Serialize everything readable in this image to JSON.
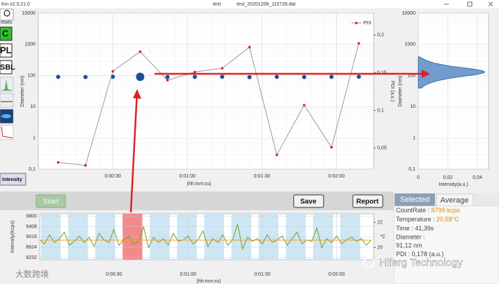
{
  "window": {
    "app": "Kin v2.3.21.0",
    "name": "test",
    "file": "test_20201208_110728.dat"
  },
  "sidebar": {
    "buttons": [
      "etails",
      "C",
      "PL",
      "SBL"
    ],
    "mode": "Intensity"
  },
  "main_chart": {
    "type": "scatter",
    "x_label": "(hh:mm:ss)",
    "y_label": "Diameter (nm)",
    "y2_label": "PDI (a.u.)",
    "x": [
      8,
      19,
      30,
      41,
      52,
      63,
      74,
      85,
      96,
      107,
      118,
      129
    ],
    "series": [
      {
        "values": [
          91,
          90,
          92,
          91.12,
          90,
          91,
          92,
          89,
          91,
          90,
          91,
          92
        ],
        "color": "#1f4e9a"
      },
      {
        "name": "PDI",
        "axis": "y2",
        "values": [
          0.031,
          0.027,
          0.152,
          0.178,
          0.14,
          0.151,
          0.156,
          0.184,
          0.041,
          0.107,
          0.051,
          0.189
        ],
        "color": "#e02020",
        "line_color": "#999999"
      }
    ],
    "selected": 3,
    "xlim": [
      0,
      135
    ],
    "xticks": [
      {
        "value": 30,
        "label": "0:00:30"
      },
      {
        "value": 60,
        "label": "0:01:00"
      },
      {
        "value": 90,
        "label": "0:01:30"
      },
      {
        "value": 120,
        "label": "0:02:00"
      }
    ],
    "ylim": [
      0.1,
      10000
    ],
    "log_y": true,
    "yticks": [
      {
        "value": 0.1,
        "label": "0,1"
      },
      1,
      10,
      100,
      1000,
      10000
    ],
    "y2lim": [
      0.022,
      0.229
    ],
    "y2ticks": [
      {
        "value": 0.05,
        "label": "0,05"
      },
      {
        "value": 0.1,
        "label": "0,1"
      },
      {
        "value": 0.15,
        "label": "0,15"
      },
      {
        "value": 0.2,
        "label": "0,2"
      }
    ],
    "grid": true,
    "legend": "top-right"
  },
  "distribution": {
    "type": "area",
    "x_label": "Intensity(a.u.)",
    "y_label": "Diameter (nm)",
    "diameters": [
      40,
      50,
      60,
      70,
      80,
      90,
      100,
      110,
      120,
      130,
      140,
      160,
      180,
      200,
      250,
      300,
      350,
      400
    ],
    "values": [
      0.002,
      0.005,
      0.009,
      0.014,
      0.02,
      0.027,
      0.034,
      0.04,
      0.044,
      0.045,
      0.044,
      0.038,
      0.03,
      0.022,
      0.011,
      0.006,
      0.003,
      0.001
    ],
    "color": "#5b8bc5",
    "xlim": [
      0,
      0.0475
    ],
    "xticks": [
      0,
      {
        "value": 0.02,
        "label": "0,02"
      },
      {
        "value": 0.04,
        "label": "0,04"
      }
    ],
    "ylim": [
      0.1,
      10000
    ],
    "log_y": true,
    "yticks": [
      {
        "value": 0.1,
        "label": "0,1"
      },
      1,
      10,
      100,
      1000,
      10000
    ],
    "grid": true
  },
  "controls": {
    "start": "Start",
    "save": "Save",
    "report": "Report"
  },
  "trace": {
    "type": "line",
    "x_label": "(hh:mm:ss)",
    "y_label": "Intensity(Kcps)",
    "y2_label": "°C",
    "x": [
      0,
      2,
      4,
      6,
      8,
      10,
      12,
      14,
      16,
      18,
      20,
      22,
      24,
      26,
      28,
      30,
      32,
      34,
      36,
      38,
      40,
      42,
      44,
      46,
      48,
      50,
      52,
      54,
      56,
      58,
      60,
      62,
      64,
      66,
      68,
      70,
      72,
      74,
      76,
      78,
      80,
      82,
      84,
      86,
      88,
      90,
      92,
      94,
      96,
      98,
      100,
      102,
      104,
      106,
      108,
      110,
      112,
      114,
      116,
      118,
      120,
      122,
      124,
      126,
      128,
      130,
      132,
      134
    ],
    "intensity": {
      "color": "#6aa321",
      "values": [
        8900,
        8750,
        9100,
        8800,
        8950,
        9200,
        8700,
        8850,
        9050,
        8800,
        9000,
        8650,
        9150,
        8900,
        8800,
        9300,
        8700,
        8900,
        9050,
        8750,
        8850,
        9400,
        8600,
        9000,
        8800,
        8950,
        8700,
        9150,
        8850,
        8900,
        9050,
        8750,
        8900,
        9250,
        8650,
        8950,
        8800,
        9100,
        8700,
        8900,
        9500,
        8550,
        9000,
        8850,
        8950,
        8750,
        9100,
        8800,
        8900,
        9050,
        8700,
        8950,
        9200,
        8750,
        8900,
        8850,
        9350,
        8600,
        8950,
        8800,
        9050,
        8750,
        8900,
        9000,
        8850,
        8950,
        8700,
        8900
      ]
    },
    "temperature": {
      "axis": "y2",
      "color": "#f0a030",
      "x": [
        0,
        134
      ],
      "values": [
        20.58,
        20.58
      ]
    },
    "xlim": [
      0,
      135
    ],
    "xticks": [
      {
        "value": 30,
        "label": "0:00:30"
      },
      {
        "value": 60,
        "label": "0:01:00"
      },
      {
        "value": 90,
        "label": "0:01:30"
      },
      {
        "value": 120,
        "label": "0:02:00"
      }
    ],
    "ylim": [
      8150,
      9900
    ],
    "yticks": [
      8232,
      8624,
      9016,
      9408,
      9800
    ],
    "y2lim": [
      19.03,
      22.69
    ],
    "y2ticks": [
      20,
      22
    ],
    "grid": true
  },
  "info": {
    "tabs": [
      "Selected",
      "Average"
    ],
    "rows": [
      [
        "CountRate :",
        "8799 kcps"
      ],
      [
        "Temperature :",
        "20,58°C"
      ],
      [
        "Time :",
        "41,39s"
      ],
      [
        "Diameter :"
      ],
      [
        "91,12 nm"
      ],
      [
        "PDI :",
        "0,178 (a.u.)"
      ]
    ]
  },
  "watermarks": [
    "大数跨境",
    "Hiferg Technology"
  ]
}
